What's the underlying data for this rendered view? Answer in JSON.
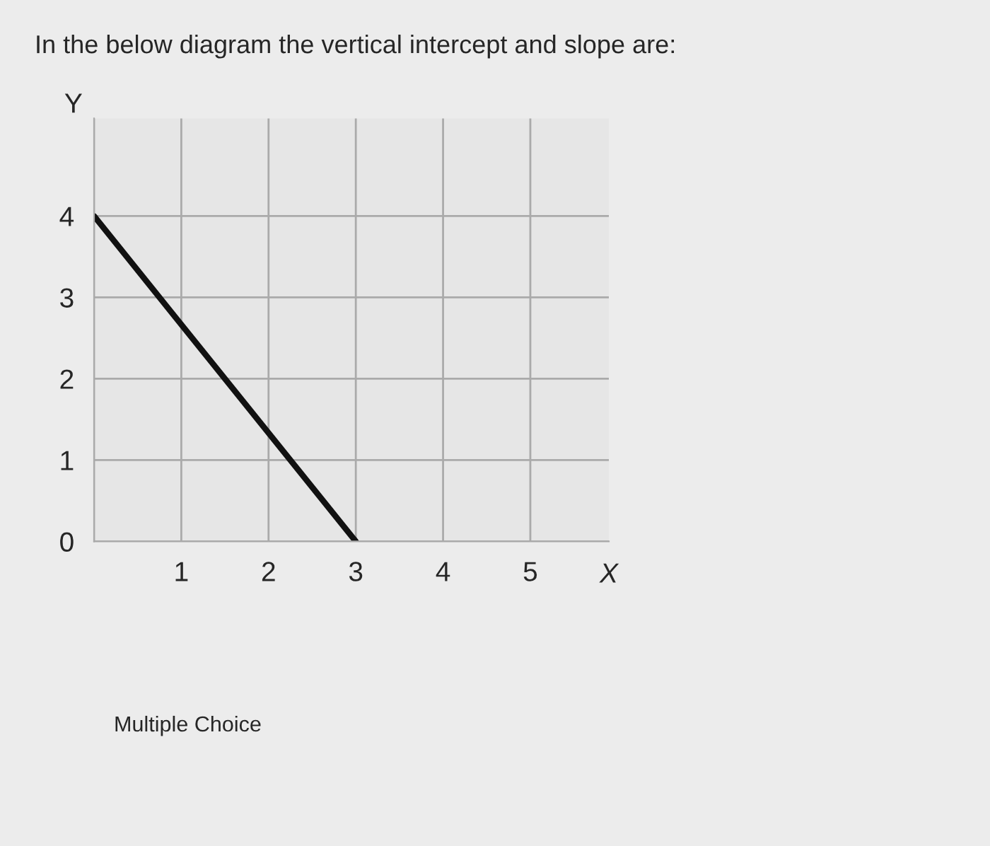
{
  "chart_data": {
    "type": "line",
    "title": "In the below diagram the vertical intercept and slope are:",
    "xlabel": "X",
    "ylabel": "Y",
    "x": [
      0,
      3
    ],
    "series": [
      {
        "color": "#111111",
        "values": [
          4,
          0
        ]
      }
    ],
    "xlim": [
      0,
      5.9
    ],
    "ylim": [
      0,
      5.2
    ],
    "xticks": [
      {
        "value": 0,
        "label": null
      },
      1,
      2,
      3,
      4,
      5
    ],
    "yticks": [
      0,
      1,
      2,
      3,
      4
    ],
    "grid": true,
    "marker": "none",
    "line_style": "solid",
    "annotations": [
      "Multiple Choice"
    ]
  }
}
